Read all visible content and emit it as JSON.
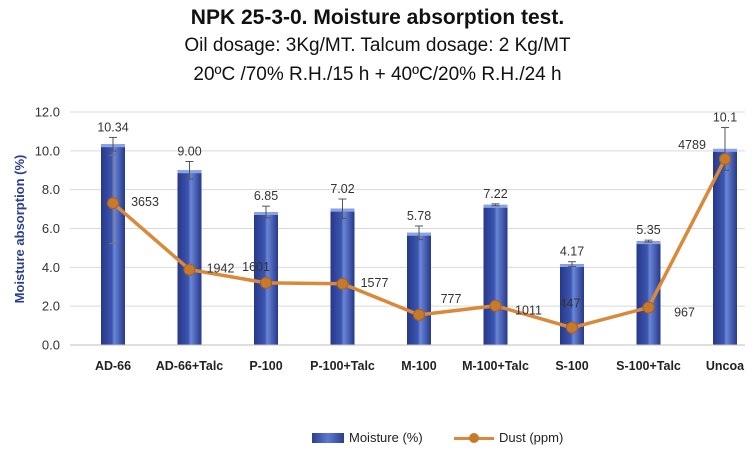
{
  "titles": {
    "line1": "NPK 25-3-0. Moisture absorption test.",
    "line2": "Oil dosage: 3Kg/MT. Talcum dosage: 2 Kg/MT",
    "line3": "20ºC /70% R.H./15 h + 40ºC/20% R.H./24 h"
  },
  "legend": {
    "moisture": "Moisture (%)",
    "dust": "Dust (ppm)"
  },
  "colors": {
    "bar": "#3d56b0",
    "bar_dark": "#26388a",
    "line": "#d9893a",
    "marker": "#c87a2c",
    "grid": "#d9d9d9"
  },
  "chart_data": {
    "type": "bar",
    "categories": [
      "AD-66",
      "AD-66+Talc",
      "P-100",
      "P-100+Talc",
      "M-100",
      "M-100+Talc",
      "S-100",
      "S-100+Talc",
      "Uncoa"
    ],
    "ylabel": "Moisture absorption (%)",
    "ylim": [
      0,
      12
    ],
    "yticks": [
      "0.0",
      "2.0",
      "4.0",
      "6.0",
      "8.0",
      "10.0",
      "12.0"
    ],
    "grid": true,
    "legend_position": "bottom",
    "series": [
      {
        "name": "Moisture (%)",
        "type": "bar",
        "values": [
          10.34,
          9.0,
          6.85,
          7.02,
          5.78,
          7.22,
          4.17,
          5.35,
          10.1
        ],
        "labels": [
          "10.34",
          "9.00",
          "6.85",
          "7.02",
          "5.78",
          "7.22",
          "4.17",
          "5.35",
          "10.1"
        ],
        "error": [
          0.35,
          0.45,
          0.3,
          0.5,
          0.35,
          0.05,
          0.12,
          0.05,
          1.1
        ]
      },
      {
        "name": "Dust (ppm)",
        "type": "line",
        "values": [
          3653,
          1942,
          1601,
          1577,
          777,
          1011,
          447,
          967,
          4789
        ],
        "labels": [
          "3653",
          "1942",
          "1601",
          "1577",
          "777",
          "1011",
          "447",
          "967",
          "4789"
        ],
        "error": [
          650,
          0,
          0,
          0,
          0,
          0,
          0,
          0,
          0
        ]
      }
    ]
  }
}
